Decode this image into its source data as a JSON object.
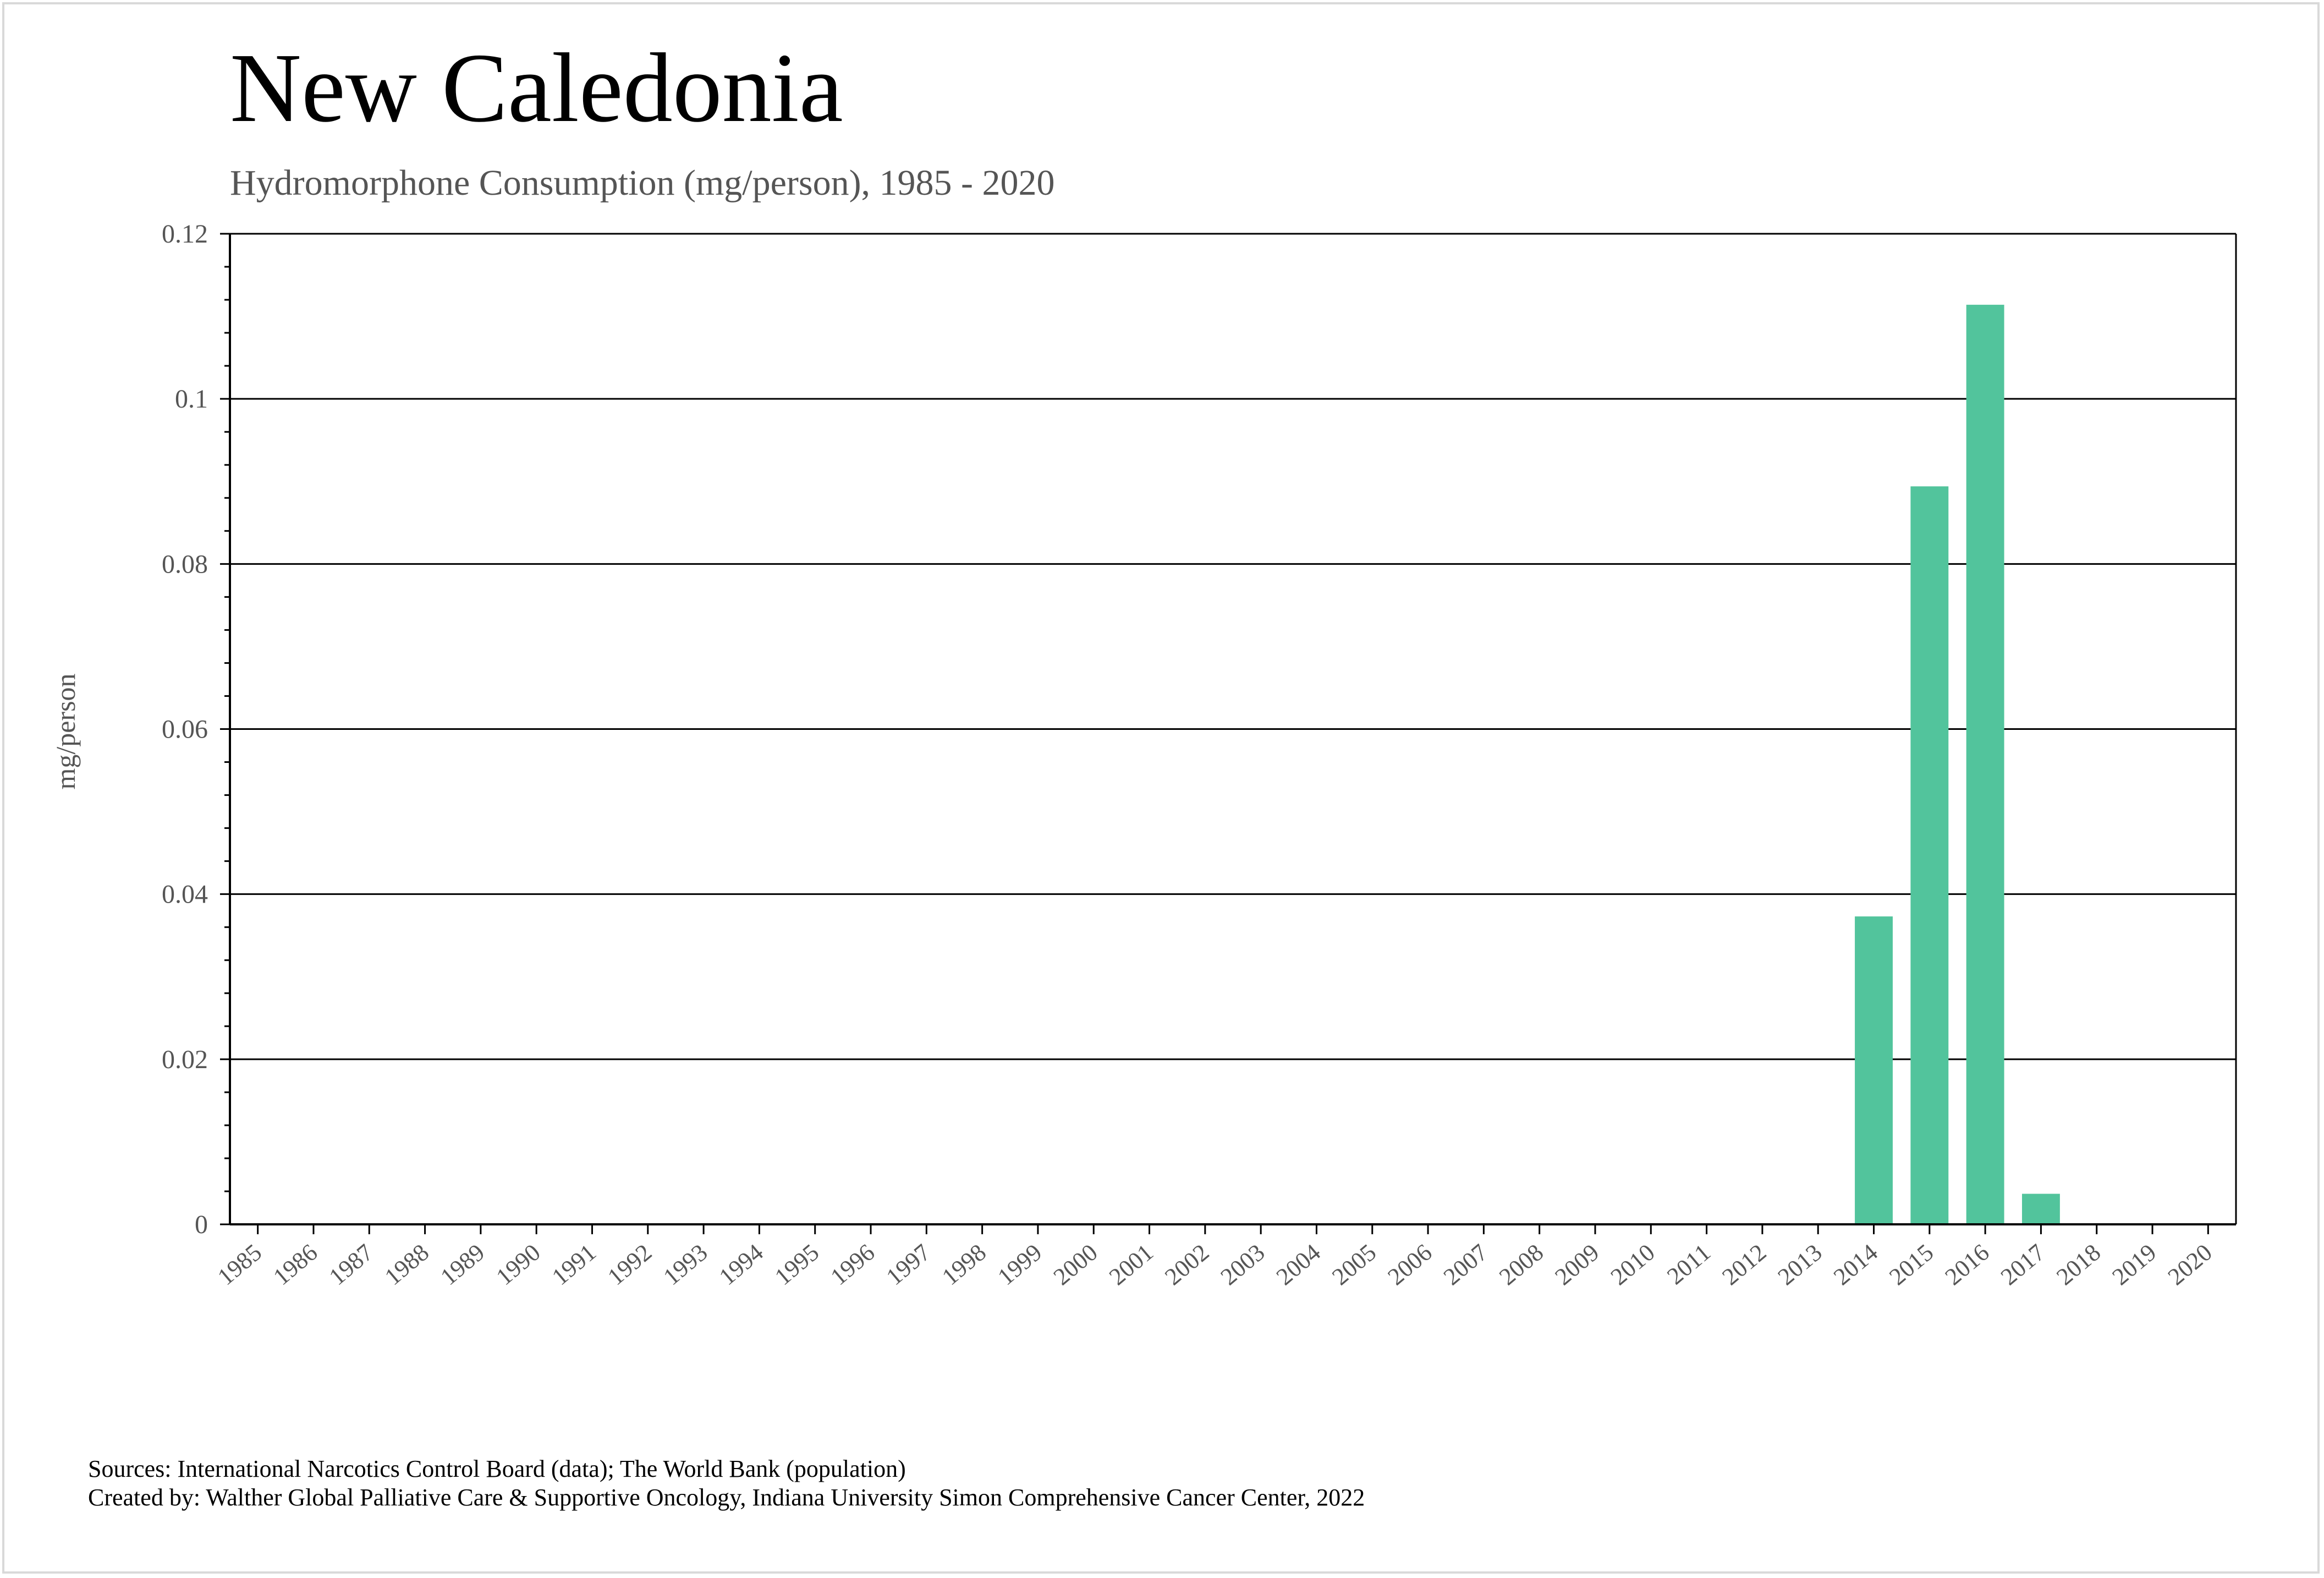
{
  "chart_data": {
    "type": "bar",
    "title": "New Caledonia",
    "subtitle": "Hydromorphone Consumption (mg/person), 1985 - 2020",
    "ylabel": "mg/person",
    "xlabel": "",
    "ylim": [
      0,
      0.12
    ],
    "yticks": [
      "0",
      "0.02",
      "0.04",
      "0.06",
      "0.08",
      "0.1",
      "0.12"
    ],
    "ytick_values": [
      0,
      0.02,
      0.04,
      0.06,
      0.08,
      0.1,
      0.12
    ],
    "grid": true,
    "bar_color": "#52c49c",
    "categories": [
      "1985",
      "1986",
      "1987",
      "1988",
      "1989",
      "1990",
      "1991",
      "1992",
      "1993",
      "1994",
      "1995",
      "1996",
      "1997",
      "1998",
      "1999",
      "2000",
      "2001",
      "2002",
      "2003",
      "2004",
      "2005",
      "2006",
      "2007",
      "2008",
      "2009",
      "2010",
      "2011",
      "2012",
      "2013",
      "2014",
      "2015",
      "2016",
      "2017",
      "2018",
      "2019",
      "2020"
    ],
    "values": [
      0,
      0,
      0,
      0,
      0,
      0,
      0,
      0,
      0,
      0,
      0,
      0,
      0,
      0,
      0,
      0,
      0,
      0,
      0,
      0,
      0,
      0,
      0,
      0,
      0,
      0,
      0,
      0,
      0,
      0.0373,
      0.0894,
      0.1114,
      0.0037,
      0,
      0,
      0
    ]
  },
  "footer": {
    "sources": "Sources: International Narcotics Control Board (data); The World Bank (population)",
    "created_by": "Created by: Walther Global Palliative Care & Supportive Oncology, Indiana University Simon Comprehensive Cancer Center, 2022"
  }
}
